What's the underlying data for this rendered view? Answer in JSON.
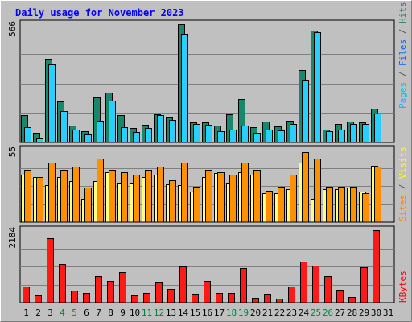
{
  "chart_data": {
    "type": "bar",
    "title": "Daily usage for November 2023",
    "categories": [
      "1",
      "2",
      "3",
      "4",
      "5",
      "6",
      "7",
      "8",
      "9",
      "10",
      "11",
      "12",
      "13",
      "14",
      "15",
      "16",
      "17",
      "18",
      "19",
      "20",
      "21",
      "22",
      "23",
      "24",
      "25",
      "26",
      "27",
      "28",
      "29",
      "30",
      "31"
    ],
    "weekend_days": [
      4,
      5,
      11,
      12,
      18,
      19,
      25,
      26
    ],
    "panels": [
      {
        "id": "hits",
        "ylabel_parts": [
          {
            "text": "Pages",
            "color": "#00c0ff"
          },
          {
            "text": " / ",
            "color": "#555555"
          },
          {
            "text": "Files",
            "color": "#0064ff"
          },
          {
            "text": " / ",
            "color": "#555555"
          },
          {
            "text": "Hits",
            "color": "#19876b"
          }
        ],
        "ymax_label": "566",
        "ylim": [
          0,
          566
        ],
        "series": [
          {
            "name": "Hits",
            "color": "#19876b",
            "values": [
              130,
              45,
              400,
              195,
              80,
              55,
              215,
              240,
              130,
              70,
              85,
              135,
              125,
              566,
              95,
              95,
              82,
              135,
              208,
              75,
              102,
              78,
              103,
              345,
              535,
              60,
              88,
              100,
              95,
              163,
              0
            ]
          },
          {
            "name": "Files",
            "color": "#28d0ff",
            "values": [
              75,
              18,
              375,
              150,
              60,
              40,
              105,
              200,
              75,
              50,
              70,
              130,
              108,
              520,
              90,
              85,
              55,
              60,
              80,
              48,
              60,
              56,
              90,
              300,
              528,
              55,
              60,
              90,
              88,
              140,
              0
            ]
          }
        ]
      },
      {
        "id": "visits",
        "ylabel_parts": [
          {
            "text": "Sites",
            "color": "#ff8000"
          },
          {
            "text": " / ",
            "color": "#555555"
          },
          {
            "text": "Visits",
            "color": "#ffff00"
          }
        ],
        "ymax_label": "55",
        "ylim": [
          0,
          55
        ],
        "series": [
          {
            "name": "Sites",
            "color": "#ffff80",
            "values": [
              36,
              34,
              28,
              34,
              31,
              18,
              31,
              38,
              30,
              30,
              34,
              36,
              29,
              28,
              23,
              34,
              37,
              30,
              38,
              36,
              22,
              22,
              25,
              45,
              18,
              25,
              25,
              26,
              23,
              43,
              0
            ]
          },
          {
            "name": "Visits",
            "color": "#ff9000",
            "values": [
              40,
              34,
              45,
              40,
              42,
              26,
              48,
              40,
              38,
              36,
              40,
              42,
              32,
              45,
              27,
              40,
              38,
              36,
              45,
              40,
              24,
              27,
              36,
              53,
              48,
              27,
              27,
              27,
              22,
              42,
              0
            ]
          }
        ]
      },
      {
        "id": "kbytes",
        "ylabel_parts": [
          {
            "text": "KBytes",
            "color": "#ff0000"
          }
        ],
        "ymax_label": "2184",
        "ylim": [
          0,
          2184
        ],
        "series": [
          {
            "name": "KBytes",
            "color": "#ff1a1a",
            "values": [
              480,
              220,
              1950,
              1170,
              360,
              280,
              800,
              660,
              910,
              230,
              280,
              620,
              420,
              1100,
              270,
              660,
              300,
              300,
              1040,
              150,
              260,
              120,
              480,
              1240,
              1120,
              790,
              400,
              160,
              1070,
              2184,
              0
            ]
          }
        ]
      }
    ]
  }
}
